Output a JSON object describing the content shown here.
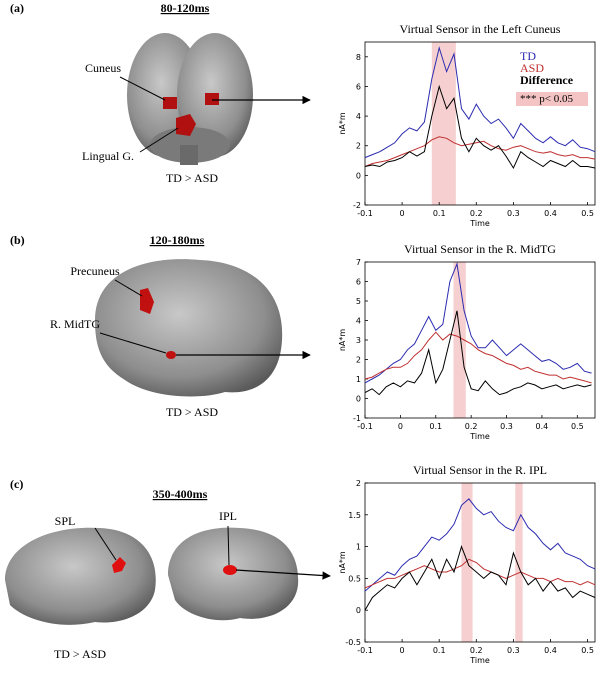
{
  "panels": [
    {
      "label": "(a)",
      "window": "80-120ms",
      "regions": [
        "Cuneus",
        "Lingual G."
      ],
      "contrast": "TD > ASD"
    },
    {
      "label": "(b)",
      "window": "120-180ms",
      "regions": [
        "Precuneus",
        "R. MidTG"
      ],
      "contrast": "TD > ASD"
    },
    {
      "label": "(c)",
      "window": "350-400ms",
      "regions": [
        "SPL",
        "IPL"
      ],
      "contrast": "TD > ASD"
    }
  ],
  "chart_data": [
    {
      "type": "line",
      "title": "Virtual Sensor in the Left Cuneus",
      "xlabel": "Time",
      "ylabel": "nA*m",
      "x": [
        -0.1,
        -0.08,
        -0.06,
        -0.04,
        -0.02,
        0,
        0.02,
        0.04,
        0.06,
        0.08,
        0.1,
        0.12,
        0.14,
        0.16,
        0.18,
        0.2,
        0.22,
        0.24,
        0.26,
        0.28,
        0.3,
        0.32,
        0.34,
        0.36,
        0.38,
        0.4,
        0.42,
        0.44,
        0.46,
        0.48,
        0.5,
        0.52
      ],
      "series": [
        {
          "name": "TD",
          "color": "#2b2bb0",
          "values": [
            1.2,
            1.4,
            1.6,
            1.9,
            2.2,
            2.8,
            3.2,
            3.0,
            3.6,
            6.5,
            8.6,
            7.0,
            8.2,
            4.5,
            3.8,
            4.8,
            4.0,
            3.5,
            3.8,
            3.2,
            2.5,
            3.5,
            3.0,
            2.5,
            2.2,
            2.6,
            2.2,
            2.0,
            2.4,
            1.9,
            1.8,
            1.6
          ]
        },
        {
          "name": "ASD",
          "color": "#c03030",
          "values": [
            0.6,
            0.8,
            0.9,
            1.0,
            1.2,
            1.4,
            1.6,
            1.8,
            2.0,
            2.4,
            2.6,
            2.5,
            2.2,
            2.0,
            2.1,
            2.2,
            2.3,
            2.0,
            1.8,
            1.7,
            1.9,
            2.0,
            1.8,
            1.6,
            1.5,
            1.6,
            1.4,
            1.3,
            1.4,
            1.2,
            1.2,
            1.1
          ]
        },
        {
          "name": "Difference",
          "color": "#000000",
          "values": [
            0.6,
            0.7,
            0.6,
            0.9,
            1.0,
            1.2,
            1.6,
            1.3,
            1.6,
            4.0,
            6.0,
            4.5,
            5.2,
            2.5,
            1.6,
            2.5,
            2.0,
            1.7,
            2.0,
            1.3,
            0.5,
            1.6,
            1.2,
            0.9,
            0.6,
            1.0,
            0.8,
            0.6,
            1.0,
            0.6,
            0.6,
            0.5
          ]
        }
      ],
      "shaded": [
        [
          0.08,
          0.145
        ]
      ],
      "shade_color": "#f4c4c4",
      "legend": true,
      "legend_note": "*** p< 0.05",
      "xlim": [
        -0.1,
        0.52
      ],
      "xticks": [
        -0.1,
        0,
        0.1,
        0.2,
        0.3,
        0.4,
        0.5
      ],
      "ylim": [
        -2,
        9
      ],
      "yticks": [
        -2,
        0,
        2,
        4,
        6,
        8
      ]
    },
    {
      "type": "line",
      "title": "Virtual Sensor in the R. MidTG",
      "xlabel": "Time",
      "ylabel": "nA*m",
      "x": [
        -0.1,
        -0.08,
        -0.06,
        -0.04,
        -0.02,
        0,
        0.02,
        0.04,
        0.06,
        0.08,
        0.1,
        0.12,
        0.14,
        0.16,
        0.18,
        0.2,
        0.22,
        0.24,
        0.26,
        0.28,
        0.3,
        0.32,
        0.34,
        0.36,
        0.38,
        0.4,
        0.42,
        0.44,
        0.46,
        0.48,
        0.5,
        0.52,
        0.54
      ],
      "series": [
        {
          "color": "#2b2bb0",
          "values": [
            0.8,
            1.0,
            1.2,
            1.5,
            1.8,
            2.0,
            2.5,
            2.8,
            3.5,
            4.2,
            3.5,
            3.8,
            6.0,
            6.9,
            4.5,
            3.2,
            2.6,
            2.6,
            3.0,
            2.6,
            2.2,
            2.5,
            2.8,
            2.5,
            2.2,
            1.9,
            2.0,
            1.8,
            1.5,
            1.6,
            1.8,
            1.4,
            1.3
          ]
        },
        {
          "color": "#c03030",
          "values": [
            1.0,
            1.1,
            1.3,
            1.5,
            1.6,
            1.6,
            1.8,
            2.2,
            2.5,
            3.0,
            3.4,
            3.0,
            3.3,
            3.2,
            3.0,
            2.8,
            2.5,
            2.3,
            2.2,
            2.0,
            1.8,
            1.7,
            1.5,
            1.6,
            1.4,
            1.3,
            1.2,
            1.2,
            1.0,
            1.1,
            1.0,
            0.9,
            0.8
          ]
        },
        {
          "color": "#000000",
          "values": [
            0.3,
            0.5,
            0.2,
            0.6,
            0.8,
            0.6,
            0.9,
            0.8,
            1.3,
            2.5,
            0.8,
            1.5,
            3.0,
            4.5,
            1.6,
            0.5,
            0.4,
            0.9,
            0.5,
            0.2,
            0.3,
            0.5,
            0.6,
            0.8,
            0.7,
            0.5,
            0.6,
            0.7,
            0.5,
            0.6,
            0.7,
            0.6,
            0.7
          ]
        }
      ],
      "shaded": [
        [
          0.15,
          0.185
        ]
      ],
      "shade_color": "#f4c4c4",
      "xlim": [
        -0.1,
        0.55
      ],
      "xticks": [
        -0.1,
        0,
        0.1,
        0.2,
        0.3,
        0.4,
        0.5
      ],
      "ylim": [
        -1,
        7
      ],
      "yticks": [
        -1,
        0,
        1,
        2,
        3,
        4,
        5,
        6,
        7
      ]
    },
    {
      "type": "line",
      "title": "Virtual Sensor in the R. IPL",
      "xlabel": "Time",
      "ylabel": "nA*m",
      "x": [
        -0.1,
        -0.08,
        -0.06,
        -0.04,
        -0.02,
        0,
        0.02,
        0.04,
        0.06,
        0.08,
        0.1,
        0.12,
        0.14,
        0.16,
        0.18,
        0.2,
        0.22,
        0.24,
        0.26,
        0.28,
        0.3,
        0.32,
        0.34,
        0.36,
        0.38,
        0.4,
        0.42,
        0.44,
        0.46,
        0.48,
        0.5,
        0.52
      ],
      "series": [
        {
          "color": "#2b2bb0",
          "values": [
            0.3,
            0.4,
            0.5,
            0.6,
            0.55,
            0.7,
            0.8,
            0.85,
            1.0,
            1.15,
            1.1,
            1.2,
            1.35,
            1.65,
            1.75,
            1.6,
            1.5,
            1.55,
            1.4,
            1.3,
            1.25,
            1.5,
            1.3,
            1.2,
            1.05,
            0.95,
            1.05,
            0.9,
            0.85,
            0.8,
            0.7,
            0.65
          ]
        },
        {
          "color": "#c03030",
          "values": [
            0.35,
            0.4,
            0.45,
            0.5,
            0.5,
            0.55,
            0.6,
            0.65,
            0.7,
            0.65,
            0.6,
            0.6,
            0.65,
            0.7,
            0.8,
            0.75,
            0.65,
            0.6,
            0.55,
            0.5,
            0.55,
            0.6,
            0.55,
            0.5,
            0.5,
            0.45,
            0.5,
            0.45,
            0.45,
            0.4,
            0.45,
            0.4
          ]
        },
        {
          "color": "#000000",
          "values": [
            0.0,
            0.2,
            0.3,
            0.4,
            0.35,
            0.5,
            0.6,
            0.4,
            0.6,
            0.8,
            0.5,
            0.8,
            0.6,
            1.0,
            0.7,
            0.6,
            0.5,
            0.6,
            0.55,
            0.4,
            0.9,
            0.6,
            0.4,
            0.5,
            0.3,
            0.45,
            0.3,
            0.35,
            0.2,
            0.3,
            0.25,
            0.2
          ]
        }
      ],
      "shaded": [
        [
          0.16,
          0.19
        ],
        [
          0.305,
          0.325
        ]
      ],
      "shade_color": "#f4c4c4",
      "xlim": [
        -0.1,
        0.52
      ],
      "xticks": [
        -0.1,
        0,
        0.1,
        0.2,
        0.3,
        0.4,
        0.5
      ],
      "ylim": [
        -0.5,
        2
      ],
      "yticks": [
        -0.5,
        0,
        0.5,
        1,
        1.5,
        2
      ]
    }
  ]
}
